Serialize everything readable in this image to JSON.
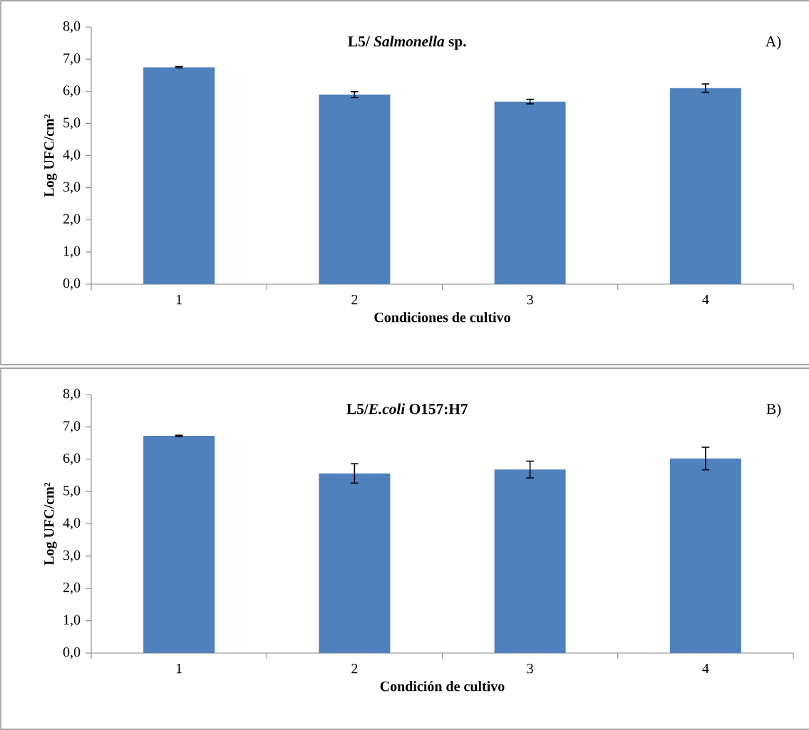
{
  "chart_data": [
    {
      "type": "bar",
      "title": "L5/ *Salmonella* sp.",
      "xlabel": "Condiciones de cultivo",
      "ylabel": "Log UFC/cm²",
      "annotations": [
        "A)"
      ],
      "categories": [
        "1",
        "2",
        "3",
        "4"
      ],
      "values": [
        6.75,
        5.9,
        5.68,
        6.1
      ],
      "errors": [
        0.02,
        0.09,
        0.07,
        0.13
      ],
      "color": "#4f81bd",
      "ylim": [
        0,
        8
      ],
      "yticks": [
        {
          "value": 0,
          "label": "0,0"
        },
        {
          "value": 1,
          "label": "1,0"
        },
        {
          "value": 2,
          "label": "2,0"
        },
        {
          "value": 3,
          "label": "3,0"
        },
        {
          "value": 4,
          "label": "4,0"
        },
        {
          "value": 5,
          "label": "5,0"
        },
        {
          "value": 6,
          "label": "6,0"
        },
        {
          "value": 7,
          "label": "7,0"
        },
        {
          "value": 8,
          "label": "8,0"
        }
      ]
    },
    {
      "type": "bar",
      "title": "L5/*E.coli* O157:H7",
      "xlabel": "Condición de cultivo",
      "ylabel": "Log UFC/cm²",
      "annotations": [
        "B)"
      ],
      "categories": [
        "1",
        "2",
        "3",
        "4"
      ],
      "values": [
        6.72,
        5.56,
        5.68,
        6.02
      ],
      "errors": [
        0.02,
        0.3,
        0.26,
        0.35
      ],
      "color": "#4f81bd",
      "ylim": [
        0,
        8
      ],
      "yticks": [
        {
          "value": 0,
          "label": "0,0"
        },
        {
          "value": 1,
          "label": "1,0"
        },
        {
          "value": 2,
          "label": "2,0"
        },
        {
          "value": 3,
          "label": "3,0"
        },
        {
          "value": 4,
          "label": "4,0"
        },
        {
          "value": 5,
          "label": "5,0"
        },
        {
          "value": 6,
          "label": "6,0"
        },
        {
          "value": 7,
          "label": "7,0"
        },
        {
          "value": 8,
          "label": "8,0"
        }
      ]
    }
  ]
}
